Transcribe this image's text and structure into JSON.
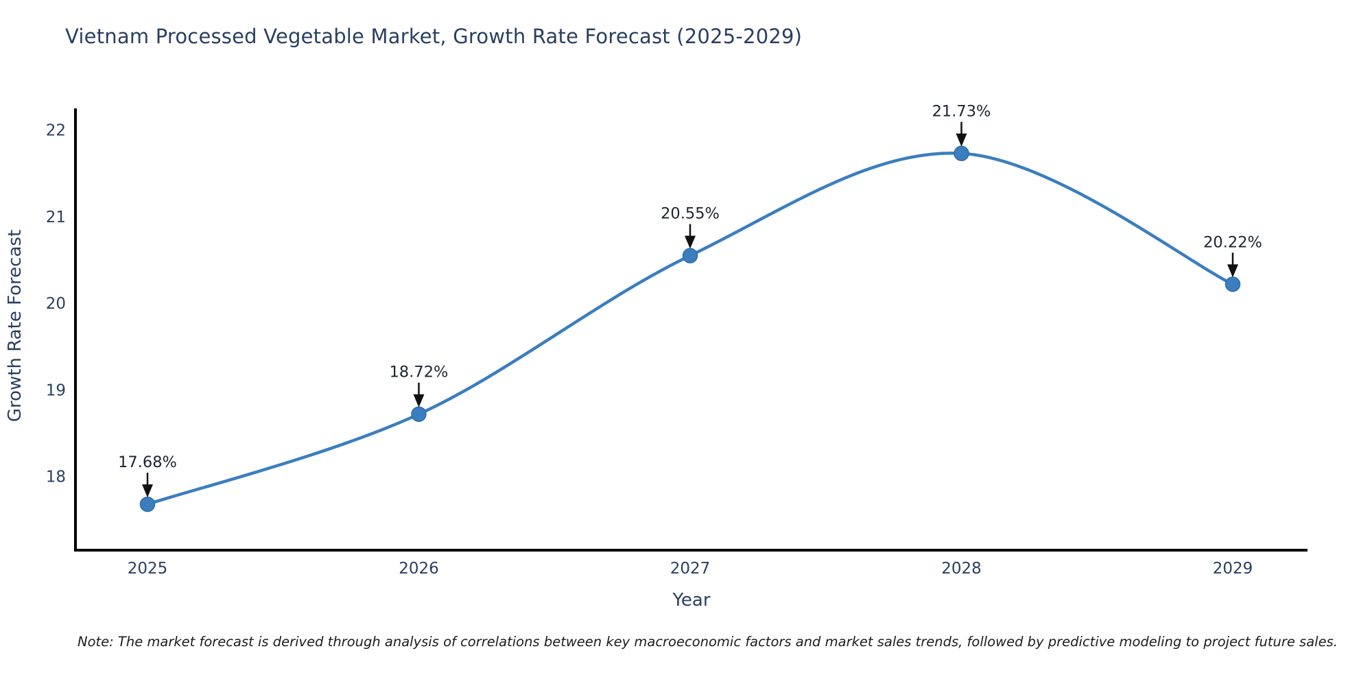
{
  "chart_data": {
    "type": "line",
    "title": "Vietnam Processed Vegetable Market, Growth Rate Forecast (2025-2029)",
    "xlabel": "Year",
    "ylabel": "Growth Rate Forecast",
    "categories": [
      "2025",
      "2026",
      "2027",
      "2028",
      "2029"
    ],
    "values": [
      17.68,
      18.72,
      20.55,
      21.73,
      20.22
    ],
    "point_labels": [
      "17.68%",
      "18.72%",
      "20.55%",
      "21.73%",
      "20.22%"
    ],
    "yticks": [
      18,
      19,
      20,
      21,
      22
    ],
    "ylim": [
      17.15,
      22.25
    ],
    "grid": false,
    "legend": "none",
    "line_color": "#3a7ebf",
    "marker_color": "#3a7ebf",
    "marker_edge_color": "#2e6da4",
    "axis_color": "#000000",
    "tick_label_color": "#2a3f5f",
    "annotation_color": "#1c2430",
    "arrow_color": "#111111",
    "note": "Note: The market forecast is derived through analysis of correlations between key macroeconomic factors and market sales trends, followed by predictive modeling to project future sales."
  }
}
